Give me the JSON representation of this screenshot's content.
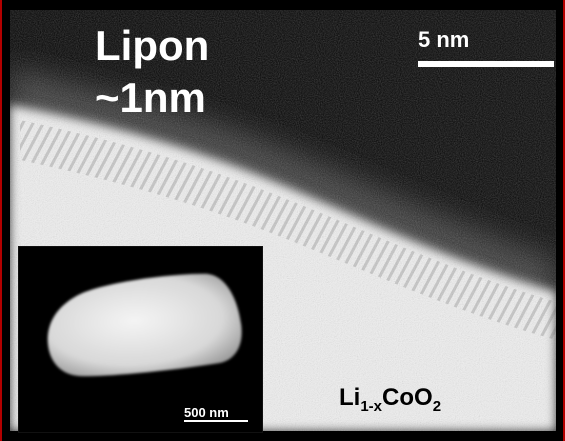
{
  "overlay_label": {
    "line1": "Lipon",
    "line2": "~1nm"
  },
  "scale_bar_main": {
    "label": "5 nm"
  },
  "inset": {
    "scale_label": "500 nm"
  },
  "sample_label": {
    "base1": "Li",
    "sub1": "1-x",
    "base2": "CoO",
    "sub2": "2"
  },
  "colors": {
    "background": "#000000",
    "crystal": "#f2f2f2",
    "overlay_text": "#ffffff",
    "sample_text": "#000000",
    "edge_accent": "#b30000"
  }
}
